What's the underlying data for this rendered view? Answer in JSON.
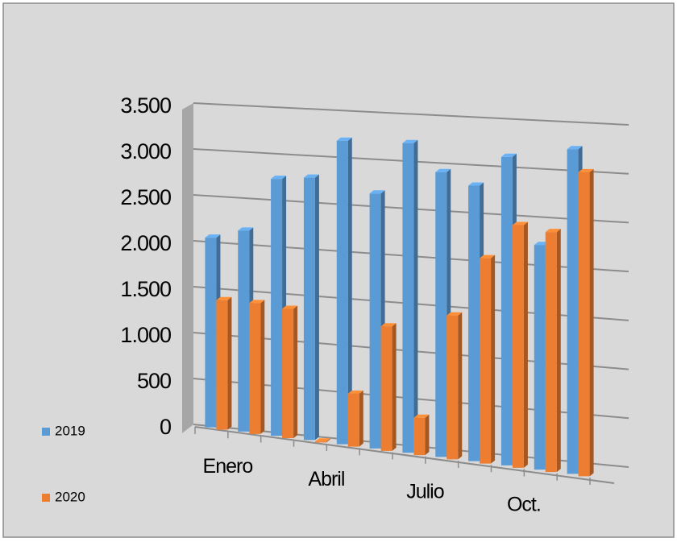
{
  "chart_data": {
    "type": "bar3d",
    "categories": [
      "Enero",
      null,
      null,
      "Abril",
      null,
      null,
      "Julio",
      null,
      null,
      "Oct.",
      null,
      null
    ],
    "series": [
      {
        "name": "2019",
        "color": "#5b9bd5",
        "values": [
          2050,
          2150,
          2720,
          2750,
          3150,
          2620,
          3150,
          2870,
          2750,
          3050,
          2200,
          3150
        ]
      },
      {
        "name": "2020",
        "color": "#ed7d31",
        "values": [
          1400,
          1400,
          1370,
          10,
          550,
          1280,
          380,
          1450,
          2050,
          2400,
          2350,
          2950
        ]
      }
    ],
    "ylim": [
      0,
      3500
    ],
    "yticks": [
      0,
      500,
      {
        "value": 1000,
        "label": "1.000"
      },
      {
        "value": 1500,
        "label": "1.500"
      },
      {
        "value": 2000,
        "label": "2.000"
      },
      {
        "value": 2500,
        "label": "2.500"
      },
      {
        "value": 3000,
        "label": "3.000"
      },
      {
        "value": 3500,
        "label": "3.500"
      }
    ],
    "grid": true,
    "legend": "left"
  }
}
